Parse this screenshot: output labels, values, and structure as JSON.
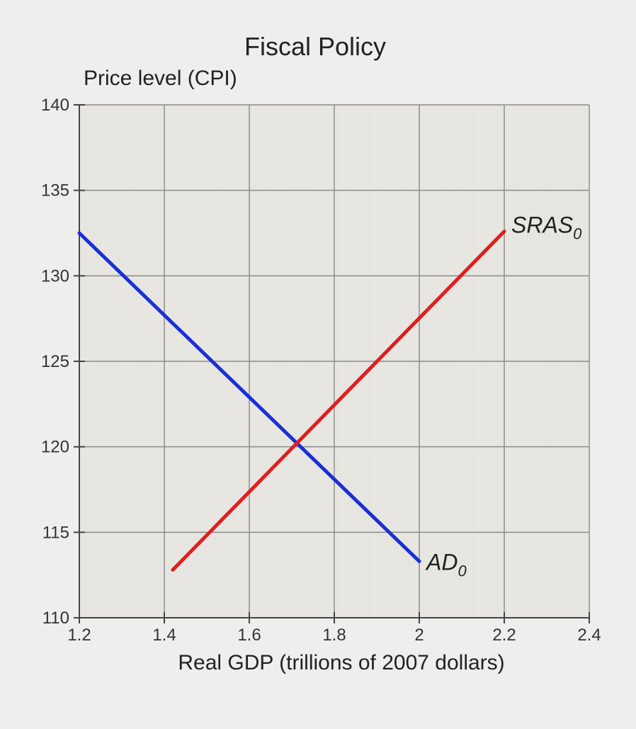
{
  "chart_data": {
    "type": "line",
    "title": "Fiscal Policy",
    "ylabel": "Price level (CPI)",
    "xlabel": "Real GDP (trillions of 2007 dollars)",
    "xlim": [
      1.2,
      2.4
    ],
    "ylim": [
      110,
      140
    ],
    "x_ticks": [
      1.2,
      1.4,
      1.6,
      1.8,
      2,
      2.2,
      2.4
    ],
    "x_tick_labels": [
      "1.2",
      "1.4",
      "1.6",
      "1.8",
      "2",
      "2.2",
      "2.4"
    ],
    "y_ticks": [
      110,
      115,
      120,
      125,
      130,
      135,
      140
    ],
    "y_tick_labels": [
      "110",
      "115",
      "120",
      "125",
      "130",
      "135",
      "140"
    ],
    "grid": true,
    "series": [
      {
        "name": "AD",
        "subscript": "0",
        "color": "#1a2fd6",
        "points": [
          [
            1.2,
            132.5
          ],
          [
            2.0,
            113.3
          ]
        ]
      },
      {
        "name": "SRAS",
        "subscript": "0",
        "color": "#e01e1e",
        "points": [
          [
            1.42,
            112.8
          ],
          [
            2.2,
            132.6
          ]
        ]
      }
    ]
  }
}
